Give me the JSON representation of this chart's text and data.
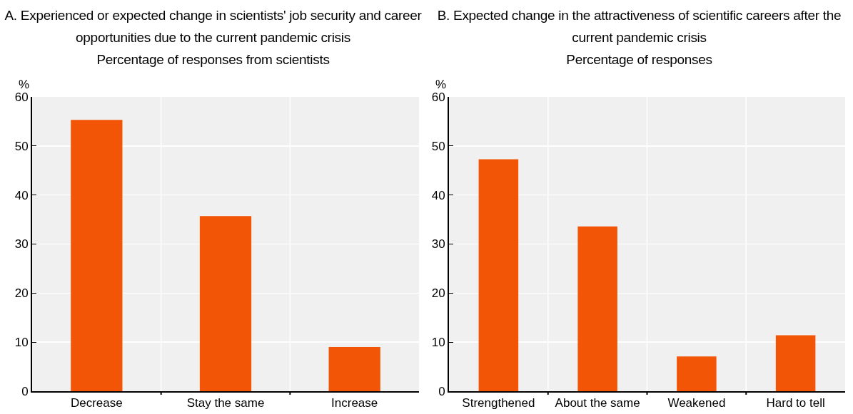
{
  "chart_data": [
    {
      "type": "bar",
      "title": "A. Experienced or expected change in scientists' job security and career opportunities due to the current pandemic crisis",
      "subtitle": "Percentage of responses from scientists",
      "ylabel": "%",
      "categories": [
        "Decrease",
        "Stay the same",
        "Increase"
      ],
      "values": [
        55.3,
        35.7,
        9.0
      ],
      "color": "#f25505",
      "ylim": [
        0,
        60
      ],
      "yticks": [
        0,
        10,
        20,
        30,
        40,
        50,
        60
      ],
      "grid": true
    },
    {
      "type": "bar",
      "title": "B. Expected change in the attractiveness of scientific careers after the current pandemic crisis",
      "subtitle": "Percentage of responses",
      "ylabel": "%",
      "categories": [
        "Strengthened",
        "About the same",
        "Weakened",
        "Hard to tell"
      ],
      "values": [
        47.3,
        33.6,
        7.1,
        11.4
      ],
      "color": "#f25505",
      "ylim": [
        0,
        60
      ],
      "yticks": [
        0,
        10,
        20,
        30,
        40,
        50,
        60
      ],
      "grid": true
    }
  ]
}
